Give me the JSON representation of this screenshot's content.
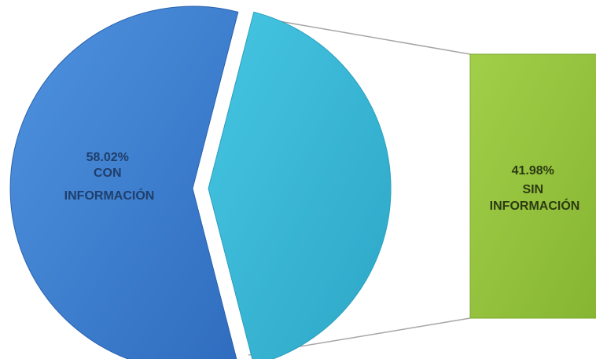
{
  "chart_data": {
    "type": "pie",
    "categories": [
      "CON INFORMACIÓN",
      "SIN INFORMACIÓN"
    ],
    "values": [
      58.02,
      41.98
    ],
    "slices": [
      {
        "name": "CON INFORMACIÓN",
        "percent_label": "58.02%",
        "label_line1": "CON",
        "label_line2": "INFORMACIÓN",
        "value": 58.02,
        "color": "#3a7fd0"
      },
      {
        "name": "SIN INFORMACIÓN",
        "percent_label": "41.98%",
        "label_line1": "SIN",
        "label_line2": "INFORMACIÓN",
        "value": 41.98,
        "color": "#36b9d8"
      }
    ],
    "breakout": {
      "percent_label": "41.98%",
      "label_line1": "SIN",
      "label_line2": "INFORMACIÓN",
      "color": "#94c23c"
    },
    "legend": "none"
  }
}
